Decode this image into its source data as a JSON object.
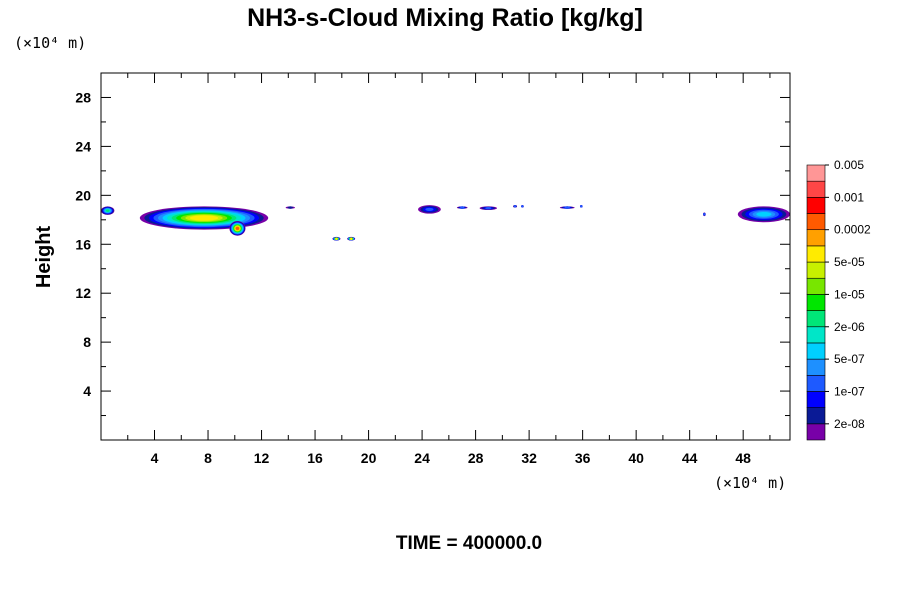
{
  "chart_data": {
    "type": "contour",
    "title": "NH3-s-Cloud Mixing Ratio [kg/kg]",
    "ylabel": "Height",
    "x_unit_label": "(×10⁴ m)",
    "y_unit_label": "(×10⁴ m)",
    "xlim": [
      0,
      51.5
    ],
    "ylim": [
      0,
      30
    ],
    "x_ticks": [
      4,
      8,
      12,
      16,
      20,
      24,
      28,
      32,
      36,
      40,
      44,
      48
    ],
    "y_ticks": [
      4,
      8,
      12,
      16,
      20,
      24,
      28
    ],
    "grid": false,
    "footer": "TIME = 400000.0",
    "colorbar": {
      "placement": "right",
      "colors": [
        "#7800a8",
        "#0a1a96",
        "#0000ff",
        "#1e5aff",
        "#1e90ff",
        "#00d0ff",
        "#00e6c8",
        "#00e678",
        "#00e600",
        "#78e600",
        "#c8f000",
        "#ffeb00",
        "#ffa000",
        "#ff5a00",
        "#ff0000",
        "#ff4646",
        "#ff9696"
      ],
      "labels": [
        "2e-08",
        "1e-07",
        "5e-07",
        "2e-06",
        "1e-05",
        "5e-05",
        "0.0002",
        "0.001",
        "0.005"
      ]
    },
    "cloud_features": [
      {
        "x": [
          0.0,
          1.0
        ],
        "y": [
          18.4,
          19.1
        ],
        "max_level": "2e-06"
      },
      {
        "x": [
          2.9,
          12.5
        ],
        "y": [
          17.2,
          19.1
        ],
        "max_level": "5e-05"
      },
      {
        "x": [
          9.6,
          10.8
        ],
        "y": [
          16.7,
          17.9
        ],
        "max_level": "0.0002"
      },
      {
        "x": [
          13.8,
          14.5
        ],
        "y": [
          18.9,
          19.1
        ],
        "max_level": "2e-08"
      },
      {
        "x": [
          17.3,
          17.9
        ],
        "y": [
          16.3,
          16.6
        ],
        "max_level": "5e-05"
      },
      {
        "x": [
          18.4,
          19.0
        ],
        "y": [
          16.3,
          16.6
        ],
        "max_level": "5e-05"
      },
      {
        "x": [
          23.7,
          25.4
        ],
        "y": [
          18.5,
          19.2
        ],
        "max_level": "1e-07"
      },
      {
        "x": [
          26.6,
          27.4
        ],
        "y": [
          18.9,
          19.1
        ],
        "max_level": "1e-07"
      },
      {
        "x": [
          28.3,
          29.6
        ],
        "y": [
          18.8,
          19.1
        ],
        "max_level": "1e-07"
      },
      {
        "x": [
          30.8,
          31.1
        ],
        "y": [
          19.0,
          19.2
        ],
        "max_level": "1e-07"
      },
      {
        "x": [
          31.4,
          31.6
        ],
        "y": [
          19.0,
          19.2
        ],
        "max_level": "1e-07"
      },
      {
        "x": [
          34.3,
          35.4
        ],
        "y": [
          18.9,
          19.1
        ],
        "max_level": "1e-07"
      },
      {
        "x": [
          35.8,
          36.0
        ],
        "y": [
          19.0,
          19.2
        ],
        "max_level": "1e-07"
      },
      {
        "x": [
          45.0,
          45.2
        ],
        "y": [
          18.3,
          18.6
        ],
        "max_level": "1e-07"
      },
      {
        "x": [
          47.6,
          51.5
        ],
        "y": [
          17.8,
          19.1
        ],
        "max_level": "5e-07"
      }
    ]
  }
}
